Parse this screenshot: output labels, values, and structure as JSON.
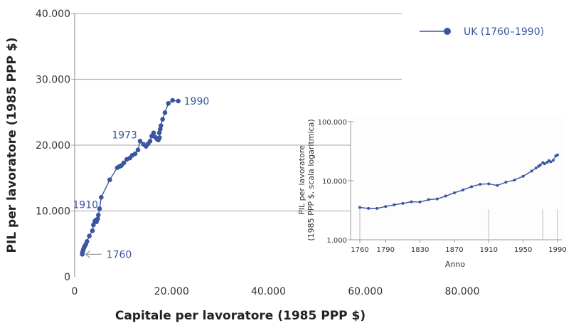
{
  "colors": {
    "series": "#3a56a0",
    "grid": "#b8b8b8",
    "axis": "#999999",
    "annotation_arrow": "#999999"
  },
  "chart_data": [
    {
      "type": "line",
      "xlabel": "Capitale per lavoratore (1985 PPP $)",
      "ylabel": "PIL per lavoratore (1985 PPP $)",
      "xlim": [
        0,
        80000
      ],
      "ylim": [
        0,
        40000
      ],
      "xticks": [
        0,
        20000,
        40000,
        60000,
        80000
      ],
      "xtick_labels": [
        "0",
        "20.000",
        "40.000",
        "60.000",
        "80.000"
      ],
      "yticks": [
        0,
        10000,
        20000,
        30000,
        40000
      ],
      "ytick_labels": [
        "0",
        "10.000",
        "20.000",
        "30.000",
        "40.000"
      ],
      "grid": "horizontal",
      "legend": {
        "placement": "top-right",
        "entries": [
          "UK (1760–1990)"
        ]
      },
      "annotations": [
        {
          "label": "1760",
          "x": 1570,
          "y": 3420,
          "arrow": true
        },
        {
          "label": "1910",
          "x": 5140,
          "y": 10340
        },
        {
          "label": "1973",
          "x": 13500,
          "y": 20610
        },
        {
          "label": "1990",
          "x": 21380,
          "y": 26700
        }
      ],
      "series": [
        {
          "name": "UK (1760–1990)",
          "x": [
            1570,
            1610,
            1710,
            1810,
            1960,
            2100,
            2300,
            2540,
            3030,
            3670,
            3870,
            4160,
            4350,
            4500,
            4750,
            4890,
            5140,
            5480,
            7240,
            8810,
            9250,
            9640,
            10130,
            10760,
            11400,
            11890,
            12480,
            13060,
            13500,
            14190,
            14730,
            15170,
            15560,
            15900,
            16290,
            16640,
            16980,
            17270,
            17520,
            17470,
            17660,
            17810,
            18150,
            18640,
            19330,
            20210,
            21380
          ],
          "y": [
            3420,
            3680,
            3960,
            4220,
            4470,
            4680,
            4940,
            5370,
            6200,
            6990,
            7890,
            8430,
            8610,
            8360,
            8790,
            9370,
            10340,
            12070,
            14740,
            16580,
            16760,
            16900,
            17300,
            17840,
            18050,
            18450,
            18700,
            19280,
            20610,
            20140,
            19820,
            20220,
            20610,
            21370,
            21870,
            21220,
            20940,
            20790,
            21150,
            21870,
            22410,
            22950,
            23930,
            24940,
            26340,
            26810,
            26700
          ]
        }
      ]
    },
    {
      "type": "line",
      "xlabel": "Anno",
      "ylabel": "PIL per lavoratore (1985 PPP $, scala logaritmica)",
      "ylabel_lines": [
        "PIL per lavoratore",
        "(1985 PPP $, scala logaritmica)"
      ],
      "yscale": "log",
      "xlim": [
        1760,
        1990
      ],
      "ylim": [
        1000,
        100000
      ],
      "xticks": [
        1760,
        1790,
        1830,
        1870,
        1910,
        1950,
        1990
      ],
      "xtick_labels": [
        "1760",
        "1790",
        "1830",
        "1870",
        "1910",
        "1950",
        "1990"
      ],
      "yticks": [
        1000,
        10000,
        100000
      ],
      "ytick_labels": [
        "1.000",
        "10.000",
        "100.000"
      ],
      "marker_years": [
        1760,
        1910,
        1973,
        1990
      ],
      "series": [
        {
          "x": [
            1760,
            1770,
            1780,
            1790,
            1800,
            1810,
            1820,
            1830,
            1840,
            1850,
            1860,
            1870,
            1880,
            1890,
            1900,
            1910,
            1920,
            1930,
            1940,
            1950,
            1960,
            1965,
            1968,
            1970,
            1973,
            1975,
            1978,
            1980,
            1982,
            1985,
            1988,
            1990
          ],
          "y": [
            3530,
            3400,
            3400,
            3660,
            3910,
            4130,
            4400,
            4360,
            4790,
            4920,
            5500,
            6250,
            6980,
            7940,
            8710,
            8870,
            8320,
            9460,
            10280,
            11910,
            14590,
            16440,
            17600,
            18530,
            20320,
            19400,
            20500,
            21880,
            20900,
            22200,
            26300,
            27300
          ]
        }
      ]
    }
  ]
}
